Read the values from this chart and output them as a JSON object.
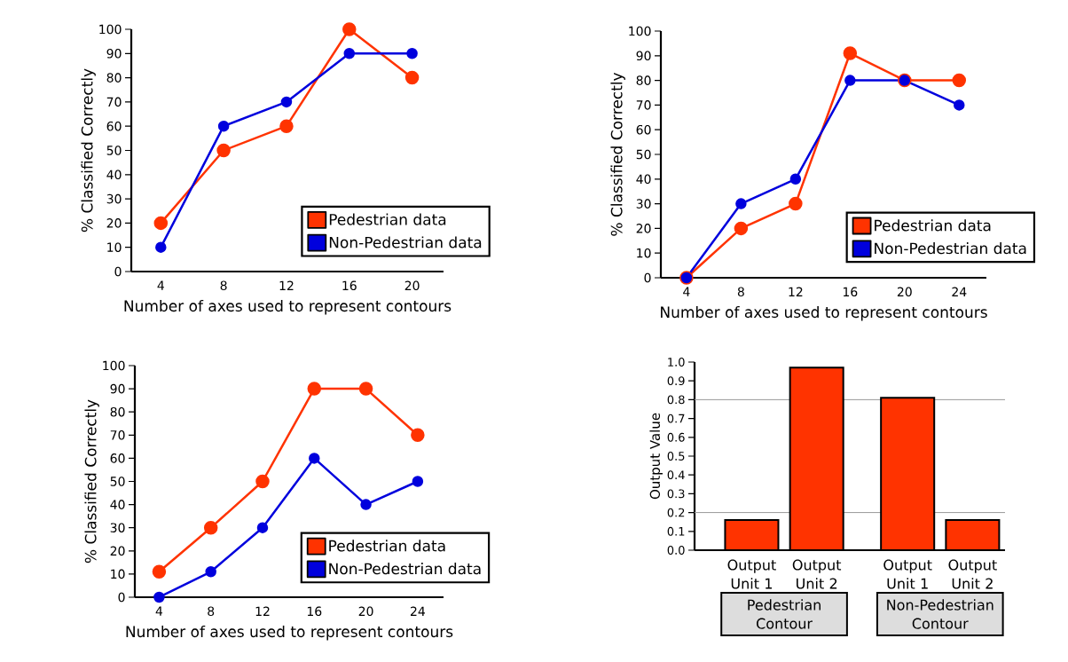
{
  "chart_data": [
    {
      "type": "line",
      "xlabel": "Number of axes used to represent contours",
      "ylabel": "% Classified Correctly",
      "categories": [
        "4",
        "8",
        "12",
        "16",
        "20"
      ],
      "ylim": [
        0,
        100
      ],
      "yticks": [
        0,
        10,
        20,
        30,
        40,
        50,
        60,
        70,
        80,
        90,
        100
      ],
      "marker": "circle",
      "line_style": "solid",
      "legend": "bottom right",
      "series": [
        {
          "name": "Pedestrian data",
          "color": "#ff3300",
          "values": [
            20,
            50,
            60,
            100,
            80
          ]
        },
        {
          "name": "Non-Pedestrian data",
          "color": "#0000dd",
          "values": [
            10,
            60,
            70,
            90,
            90
          ]
        }
      ]
    },
    {
      "type": "line",
      "xlabel": "Number of axes used to represent contours",
      "ylabel": "% Classified Correctly",
      "categories": [
        "4",
        "8",
        "12",
        "16",
        "20",
        "24"
      ],
      "ylim": [
        0,
        100
      ],
      "yticks": [
        0,
        10,
        20,
        30,
        40,
        50,
        60,
        70,
        80,
        90,
        100
      ],
      "marker": "circle",
      "line_style": "solid",
      "legend": "bottom right",
      "series": [
        {
          "name": "Pedestrian data",
          "color": "#ff3300",
          "values": [
            0,
            20,
            30,
            91,
            80,
            80
          ]
        },
        {
          "name": "Non-Pedestrian data",
          "color": "#0000dd",
          "values": [
            0,
            30,
            40,
            80,
            80,
            70
          ]
        }
      ]
    },
    {
      "type": "line",
      "xlabel": "Number of axes used to represent contours",
      "ylabel": "% Classified Correctly",
      "categories": [
        "4",
        "8",
        "12",
        "16",
        "20",
        "24"
      ],
      "ylim": [
        0,
        100
      ],
      "yticks": [
        0,
        10,
        20,
        30,
        40,
        50,
        60,
        70,
        80,
        90,
        100
      ],
      "marker": "circle",
      "line_style": "solid",
      "legend": "bottom right",
      "series": [
        {
          "name": "Pedestrian data",
          "color": "#ff3300",
          "values": [
            11,
            30,
            50,
            90,
            90,
            70
          ]
        },
        {
          "name": "Non-Pedestrian data",
          "color": "#0000dd",
          "values": [
            0,
            11,
            30,
            60,
            40,
            50
          ]
        }
      ]
    },
    {
      "type": "bar",
      "ylabel": "Output Value",
      "categories": [
        "Output Unit 1",
        "Output Unit 2",
        "Output Unit 1",
        "Output Unit 2"
      ],
      "values": [
        0.16,
        0.97,
        0.81,
        0.16
      ],
      "color": "#ff3300",
      "ylim": [
        0,
        1
      ],
      "yticks": [
        {
          "value": 0,
          "label": "0.0"
        },
        0.1,
        0.2,
        0.3,
        0.4,
        0.5,
        0.6,
        0.7,
        0.8,
        0.9,
        {
          "value": 1,
          "label": "1.0"
        }
      ],
      "ref_lines": [
        {
          "axis": "y",
          "value": 0.2,
          "color": "#999999"
        },
        {
          "axis": "y",
          "value": 0.8,
          "color": "#999999"
        }
      ],
      "annotations": [
        "Pedestrian Contour",
        "Non-Pedestrian Contour"
      ]
    }
  ]
}
